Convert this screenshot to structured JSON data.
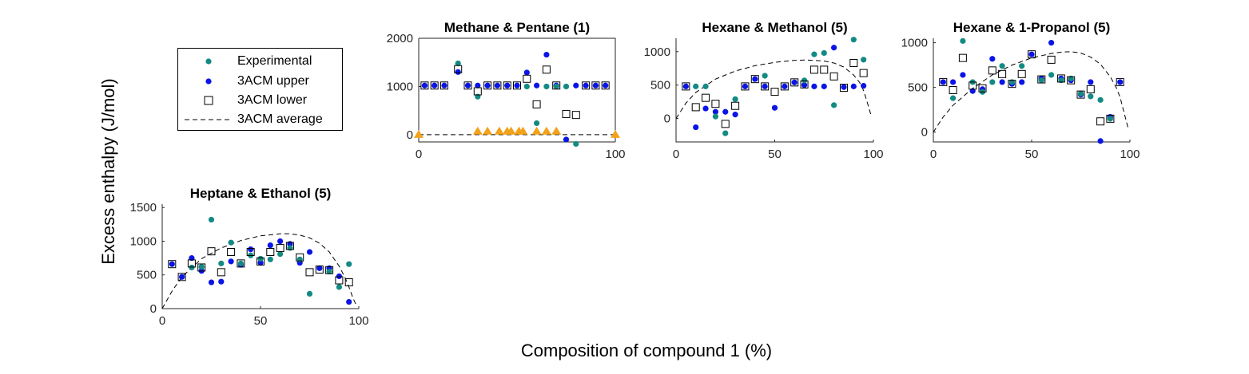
{
  "figure": {
    "ylabel": "Excess enthalpy (J/mol)",
    "xlabel": "Composition of compound 1 (%)"
  },
  "colors": {
    "experimental": "#138a84",
    "upper": "#0a14e6",
    "lower_edge": "#000000",
    "average": "#000000",
    "triangle": "#f3a21b"
  },
  "legend": {
    "placement": "outside-left",
    "items": [
      {
        "label": "Experimental",
        "marker": "filled-circle",
        "color": "#138a84"
      },
      {
        "label": "3ACM upper",
        "marker": "filled-circle",
        "color": "#0a14e6"
      },
      {
        "label": "3ACM lower",
        "marker": "open-square",
        "color": "#000000"
      },
      {
        "label": "3ACM average",
        "marker": "dashed-line",
        "color": "#000000"
      }
    ]
  },
  "chart_data": [
    {
      "type": "scatter",
      "title": "Methane & Pentane (1)",
      "xlim": [
        0,
        100
      ],
      "ylim": [
        -150,
        2000
      ],
      "xticks": [
        "0",
        "100"
      ],
      "yticks": [
        "0",
        "1000",
        "2000"
      ],
      "xtick_values": [
        0,
        100
      ],
      "ytick_values": [
        0,
        1000,
        2000
      ],
      "series": [
        {
          "name": "3ACM upper",
          "x": [
            3,
            8,
            13,
            20,
            25,
            30,
            35,
            40,
            45,
            50,
            55,
            60,
            65,
            70,
            75,
            80,
            85,
            90,
            95
          ],
          "y": [
            1020,
            1020,
            1020,
            1300,
            1020,
            1020,
            1020,
            1020,
            1020,
            1020,
            1290,
            1020,
            1660,
            1020,
            -100,
            1020,
            1020,
            1020,
            1020
          ]
        },
        {
          "name": "Experimental",
          "x": [
            20,
            30,
            55,
            60,
            65,
            70,
            75,
            80
          ],
          "y": [
            1480,
            790,
            1000,
            240,
            1000,
            1000,
            1000,
            -190
          ]
        },
        {
          "name": "3ACM lower",
          "x": [
            3,
            8,
            13,
            20,
            25,
            30,
            35,
            40,
            45,
            50,
            55,
            60,
            65,
            70,
            75,
            80,
            85,
            90,
            95
          ],
          "y": [
            1020,
            1020,
            1020,
            1360,
            1020,
            900,
            1020,
            1020,
            1020,
            1020,
            1160,
            630,
            1350,
            1020,
            430,
            410,
            1020,
            1020,
            1020
          ]
        },
        {
          "name": "3ACM average",
          "x": [
            0,
            100
          ],
          "y": [
            0,
            0
          ]
        },
        {
          "name": "",
          "x": [
            0,
            30,
            35,
            41,
            45,
            47,
            51,
            53,
            60,
            65,
            70,
            100
          ],
          "y": [
            0,
            70,
            70,
            70,
            70,
            70,
            70,
            70,
            70,
            70,
            70,
            0
          ]
        }
      ]
    },
    {
      "type": "scatter",
      "title": "Hexane & Methanol (5)",
      "xlim": [
        0,
        100
      ],
      "ylim": [
        -350,
        1200
      ],
      "xticks": [
        "0",
        "50",
        "100"
      ],
      "yticks": [
        "0",
        "500",
        "1000"
      ],
      "xtick_values": [
        0,
        50,
        100
      ],
      "ytick_values": [
        0,
        500,
        1000
      ],
      "series": [
        {
          "name": "3ACM upper",
          "x": [
            5,
            10,
            15,
            20,
            25,
            30,
            35,
            40,
            45,
            50,
            55,
            60,
            65,
            70,
            75,
            80,
            85,
            90,
            95
          ],
          "y": [
            480,
            -130,
            150,
            100,
            100,
            60,
            480,
            590,
            480,
            160,
            480,
            540,
            500,
            480,
            480,
            1060,
            470,
            480,
            490
          ]
        },
        {
          "name": "Experimental",
          "x": [
            10,
            15,
            20,
            25,
            30,
            45,
            65,
            70,
            75,
            80,
            90,
            95
          ],
          "y": [
            480,
            480,
            30,
            -220,
            290,
            640,
            570,
            960,
            980,
            200,
            1180,
            880
          ]
        },
        {
          "name": "3ACM lower",
          "x": [
            5,
            10,
            15,
            20,
            25,
            30,
            35,
            40,
            45,
            50,
            55,
            60,
            65,
            70,
            75,
            80,
            85,
            90,
            95
          ],
          "y": [
            480,
            170,
            310,
            220,
            -80,
            190,
            480,
            590,
            480,
            400,
            480,
            540,
            510,
            730,
            730,
            630,
            460,
            830,
            680
          ]
        },
        {
          "name": "3ACM average",
          "x": [
            0,
            5,
            10,
            20,
            30,
            40,
            50,
            60,
            65,
            70,
            75,
            80,
            85,
            90,
            93,
            95,
            97,
            99
          ],
          "y": [
            0,
            230,
            390,
            590,
            710,
            790,
            840,
            870,
            875,
            870,
            860,
            830,
            770,
            650,
            540,
            420,
            230,
            30
          ]
        }
      ]
    },
    {
      "type": "scatter",
      "title": "Hexane & 1-Propanol (5)",
      "xlim": [
        0,
        100
      ],
      "ylim": [
        -110,
        1050
      ],
      "xticks": [
        "0",
        "50",
        "100"
      ],
      "yticks": [
        "0",
        "500",
        "1000"
      ],
      "xtick_values": [
        0,
        50,
        100
      ],
      "ytick_values": [
        0,
        500,
        1000
      ],
      "series": [
        {
          "name": "3ACM upper",
          "x": [
            5,
            10,
            15,
            20,
            25,
            30,
            35,
            40,
            45,
            50,
            55,
            60,
            65,
            70,
            75,
            80,
            85,
            90,
            95
          ],
          "y": [
            560,
            560,
            640,
            460,
            480,
            820,
            560,
            540,
            560,
            870,
            600,
            1000,
            600,
            580,
            420,
            560,
            -100,
            170,
            560
          ]
        },
        {
          "name": "Experimental",
          "x": [
            10,
            15,
            20,
            25,
            30,
            35,
            40,
            45,
            55,
            60,
            65,
            70,
            75,
            80,
            85,
            90
          ],
          "y": [
            380,
            1020,
            560,
            450,
            560,
            740,
            560,
            740,
            580,
            640,
            580,
            600,
            430,
            400,
            360,
            150
          ]
        },
        {
          "name": "3ACM lower",
          "x": [
            5,
            10,
            15,
            20,
            25,
            30,
            35,
            40,
            45,
            50,
            55,
            60,
            65,
            70,
            75,
            80,
            85,
            90,
            95
          ],
          "y": [
            560,
            470,
            830,
            520,
            490,
            690,
            650,
            540,
            650,
            870,
            590,
            810,
            600,
            580,
            420,
            480,
            120,
            150,
            560
          ]
        },
        {
          "name": "3ACM average",
          "x": [
            0,
            5,
            10,
            20,
            30,
            40,
            50,
            60,
            65,
            70,
            75,
            80,
            85,
            90,
            93,
            95,
            97,
            99
          ],
          "y": [
            0,
            170,
            300,
            490,
            640,
            750,
            830,
            880,
            895,
            900,
            885,
            840,
            760,
            620,
            500,
            390,
            220,
            50
          ]
        }
      ]
    },
    {
      "type": "scatter",
      "title": "Heptane & Ethanol (5)",
      "xlim": [
        0,
        100
      ],
      "ylim": [
        0,
        1550
      ],
      "xticks": [
        "0",
        "50",
        "100"
      ],
      "yticks": [
        "0",
        "500",
        "1000",
        "1500"
      ],
      "xtick_values": [
        0,
        50,
        100
      ],
      "ytick_values": [
        0,
        500,
        1000,
        1500
      ],
      "series": [
        {
          "name": "3ACM upper",
          "x": [
            5,
            10,
            15,
            20,
            25,
            30,
            35,
            40,
            45,
            50,
            55,
            60,
            65,
            70,
            75,
            80,
            85,
            90,
            95
          ],
          "y": [
            660,
            470,
            750,
            560,
            390,
            400,
            700,
            650,
            880,
            680,
            940,
            1000,
            960,
            680,
            840,
            600,
            600,
            480,
            100
          ]
        },
        {
          "name": "Experimental",
          "x": [
            15,
            20,
            25,
            30,
            35,
            40,
            45,
            50,
            55,
            60,
            65,
            70,
            75,
            85,
            90,
            95
          ],
          "y": [
            610,
            620,
            1320,
            670,
            980,
            670,
            790,
            740,
            730,
            810,
            900,
            730,
            220,
            550,
            320,
            660
          ]
        },
        {
          "name": "3ACM lower",
          "x": [
            5,
            10,
            15,
            20,
            25,
            30,
            35,
            40,
            45,
            50,
            55,
            60,
            65,
            70,
            75,
            80,
            85,
            90,
            95
          ],
          "y": [
            660,
            470,
            670,
            610,
            850,
            540,
            840,
            670,
            840,
            700,
            840,
            900,
            930,
            760,
            540,
            580,
            570,
            420,
            390
          ]
        },
        {
          "name": "3ACM average",
          "x": [
            0,
            5,
            10,
            20,
            30,
            40,
            50,
            60,
            65,
            70,
            75,
            80,
            85,
            90,
            93,
            95,
            97,
            99
          ],
          "y": [
            0,
            260,
            470,
            740,
            900,
            1010,
            1080,
            1110,
            1110,
            1090,
            1050,
            970,
            840,
            630,
            460,
            320,
            160,
            30
          ]
        }
      ]
    }
  ]
}
